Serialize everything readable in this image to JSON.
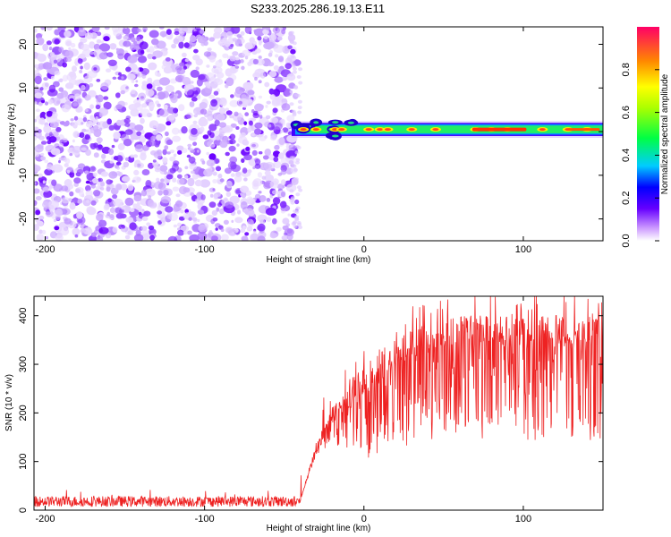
{
  "title": "S233.2025.286.19.13.E11",
  "chart_data": [
    {
      "type": "heatmap",
      "name": "spectrogram",
      "xlabel": "Height of straight line (km)",
      "ylabel": "Frequency (Hz)",
      "xlim": [
        -207,
        150
      ],
      "ylim": [
        -25,
        24
      ],
      "x_ticks": [
        -200,
        -100,
        0,
        100
      ],
      "y_ticks": [
        -20,
        -10,
        0,
        10,
        20
      ],
      "noise_region_x": [
        -207,
        -42
      ],
      "signal_band_y": [
        -1,
        2
      ],
      "colorbar": {
        "label": "Normalized spectral amplitude",
        "range": [
          0,
          1
        ],
        "ticks": [
          0.0,
          0.2,
          0.4,
          0.6,
          0.8
        ],
        "tick_labels": [
          "0.0",
          "0.2",
          "0.4",
          "0.6",
          "0.8"
        ]
      }
    },
    {
      "type": "line",
      "name": "snr",
      "xlabel": "Height of straight line (km)",
      "ylabel": "SNR (10 * v/v)",
      "xlim": [
        -207,
        150
      ],
      "ylim": [
        0,
        440
      ],
      "x_ticks": [
        -200,
        -100,
        0,
        100
      ],
      "y_ticks": [
        0,
        100,
        200,
        300,
        400
      ],
      "color": "#ee2222",
      "profile": [
        {
          "x": -207,
          "y": 18
        },
        {
          "x": -40,
          "y": 18
        },
        {
          "x": -30,
          "y": 130
        },
        {
          "x": -20,
          "y": 190
        },
        {
          "x": -10,
          "y": 220
        },
        {
          "x": 0,
          "y": 250
        },
        {
          "x": 10,
          "y": 280
        },
        {
          "x": 20,
          "y": 310
        },
        {
          "x": 30,
          "y": 330
        },
        {
          "x": 50,
          "y": 350
        },
        {
          "x": 70,
          "y": 360
        },
        {
          "x": 100,
          "y": 360
        },
        {
          "x": 130,
          "y": 360
        },
        {
          "x": 150,
          "y": 355
        }
      ]
    }
  ]
}
